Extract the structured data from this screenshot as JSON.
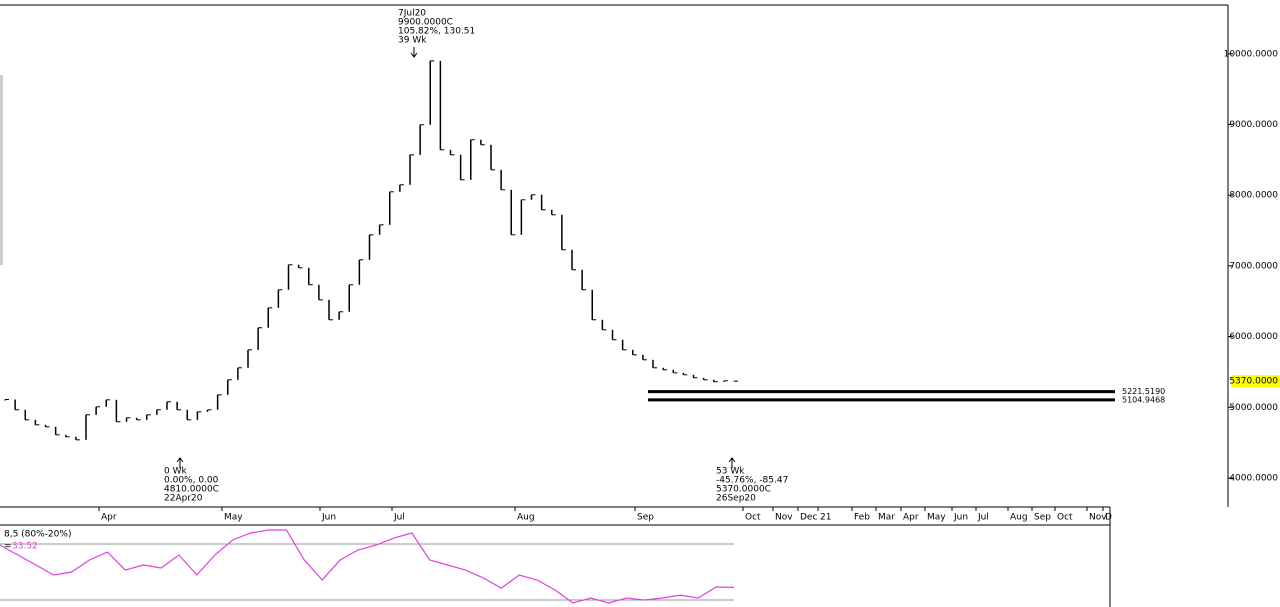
{
  "chart_data": [
    {
      "type": "ohlc",
      "color": "#000000",
      "values": [
        5110,
        4965,
        4823,
        4752,
        4724,
        4611,
        4583,
        4540,
        4894,
        5007,
        5106,
        4795,
        4852,
        4823,
        4894,
        4965,
        5078,
        4965,
        4823,
        4936,
        4965,
        5177,
        5389,
        5559,
        5813,
        6125,
        6407,
        6662,
        7016,
        6973,
        6733,
        6520,
        6238,
        6351,
        6733,
        7086,
        7440,
        7581,
        8048,
        8147,
        8571,
        8996,
        9900,
        8642,
        8571,
        8218,
        8784,
        8713,
        8359,
        8076,
        7440,
        7935,
        8006,
        7793,
        7723,
        7228,
        6945,
        6662,
        6238,
        6096,
        5955,
        5813,
        5742,
        5672,
        5559,
        5531,
        5488,
        5460,
        5417,
        5389,
        5361,
        5375,
        5370
      ],
      "ylim": [
        3590,
        10690
      ],
      "yticks": [
        {
          "value": 4000,
          "label": "4000.0000"
        },
        {
          "value": 5000,
          "label": "5000.0000"
        },
        {
          "value": 6000,
          "label": "6000.0000"
        },
        {
          "value": 7000,
          "label": "7000.0000"
        },
        {
          "value": 8000,
          "label": "8000.0000"
        },
        {
          "value": 9000,
          "label": "9000.0000"
        },
        {
          "value": 10000,
          "label": "10000.0000"
        }
      ],
      "last_price": {
        "value": 5370,
        "label": "5370.0000"
      },
      "levels": [
        {
          "value": 5221.519,
          "label": "5221.5190"
        },
        {
          "value": 5104.9468,
          "label": "5104.9468"
        }
      ],
      "months": [
        "Apr",
        "May",
        "Jun",
        "Jul",
        "Aug",
        "Sep",
        "Oct",
        "Nov",
        "Dec",
        "21",
        "Feb",
        "Mar",
        "Apr",
        "May",
        "Jun",
        "Jul",
        "Aug",
        "Sep",
        "Oct",
        "Nov",
        "D"
      ],
      "annotations": [
        [
          "7Jul20",
          "9900.0000C",
          "105.82%, 130.51",
          "39 Wk"
        ],
        [
          "0 Wk",
          "0.00%, 0.00",
          "4810.0000C",
          "22Apr20"
        ],
        [
          "53 Wk",
          "-45.76%, -85.47",
          "5370.0000C",
          "26Sep20"
        ]
      ]
    },
    {
      "type": "line",
      "title": "8,5 (80%-20%)",
      "sign": "=",
      "current": 33.52,
      "color": "#e040e0",
      "values": [
        78.9,
        68.2,
        57.5,
        46.8,
        50,
        62.9,
        71.4,
        52.1,
        57.5,
        54.3,
        68.2,
        46.8,
        68.2,
        84.3,
        91.8,
        95,
        95,
        62.9,
        41.4,
        62.9,
        73.6,
        78.9,
        86.4,
        91.8,
        62.9,
        57.5,
        52.1,
        43.6,
        32.8,
        46.8,
        41.4,
        30.7,
        16.8,
        22.1,
        16.8,
        22.1,
        20,
        22.1,
        25.3,
        22.1,
        33.9,
        33.52
      ],
      "ylim": [
        12.5,
        100.4
      ],
      "levels": [
        80,
        20
      ]
    }
  ]
}
